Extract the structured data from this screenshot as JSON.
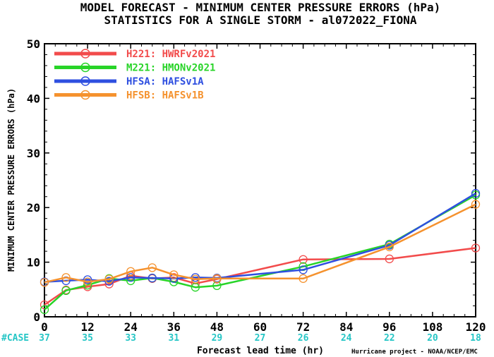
{
  "chart_data": {
    "type": "line",
    "title_line1": "MODEL FORECAST - MINIMUM CENTER PRESSURE ERRORS (hPa)",
    "title_line2": "STATISTICS FOR A SINGLE STORM - al072022_FIONA",
    "xlabel": "Forecast lead time (hr)",
    "ylabel": "MINIMUM CENTER PRESSURE ERRORS (hPa)",
    "xlim": [
      0,
      120
    ],
    "ylim": [
      0,
      50
    ],
    "x_ticks": [
      0,
      12,
      24,
      36,
      48,
      60,
      72,
      84,
      96,
      108,
      120
    ],
    "y_ticks": [
      0,
      10,
      20,
      30,
      40,
      50
    ],
    "grid": false,
    "legend_position": "top-left",
    "case_label": "#CASE",
    "case_counts": [
      37,
      35,
      33,
      31,
      29,
      27,
      26,
      24,
      22,
      20,
      18
    ],
    "case_color": "#26c6c6",
    "credit": "Hurricane project - NOAA/NCEP/EMC",
    "series": [
      {
        "name": "H221: HWRFv2021",
        "color": "#f24b4b",
        "x": [
          0,
          6,
          12,
          18,
          24,
          30,
          36,
          42,
          48,
          72,
          96,
          120
        ],
        "y": [
          2.2,
          4.9,
          5.5,
          6.0,
          7.5,
          7.0,
          7.2,
          6.1,
          6.9,
          10.5,
          10.6,
          12.6
        ]
      },
      {
        "name": "M221: HMONv2021",
        "color": "#28d428",
        "x": [
          0,
          6,
          12,
          18,
          24,
          30,
          36,
          42,
          48,
          72,
          96,
          120
        ],
        "y": [
          1.3,
          4.8,
          5.8,
          7.0,
          6.6,
          7.1,
          6.4,
          5.4,
          5.7,
          9.2,
          13.3,
          22.3
        ]
      },
      {
        "name": "HFSA: HAFSv1A",
        "color": "#2e4fe0",
        "x": [
          0,
          6,
          12,
          18,
          24,
          30,
          36,
          42,
          48,
          72,
          96,
          120
        ],
        "y": [
          6.4,
          6.6,
          6.8,
          6.5,
          7.2,
          7.1,
          7.0,
          7.2,
          7.1,
          8.6,
          13.1,
          22.6
        ]
      },
      {
        "name": "HFSB: HAFSv1B",
        "color": "#f5922e",
        "x": [
          0,
          6,
          12,
          18,
          24,
          30,
          36,
          42,
          48,
          72,
          96,
          120
        ],
        "y": [
          6.3,
          7.2,
          6.4,
          6.9,
          8.3,
          9.0,
          7.7,
          6.9,
          7.0,
          7.0,
          12.8,
          20.6
        ]
      }
    ]
  }
}
